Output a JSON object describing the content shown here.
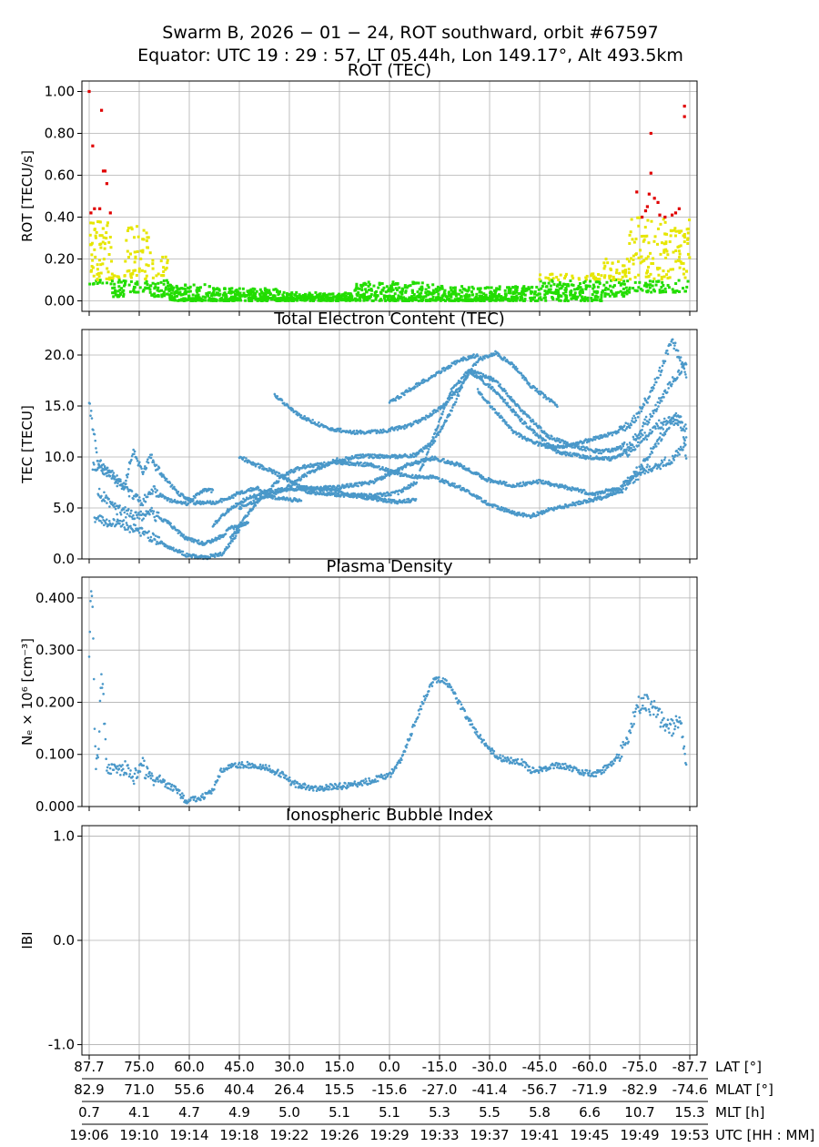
{
  "figure": {
    "title_line1": "Swarm B,  2026 − 01 − 24,  ROT southward,  orbit #67597",
    "title_line2": "Equator:  UTC 19 : 29 : 57,  LT 05.44h,  Lon 149.17°,  Alt 493.5km"
  },
  "colors": {
    "rot_low": "#22dd00",
    "rot_mid": "#e6e600",
    "rot_high": "#e00000",
    "series": "#4a98c9",
    "grid": "#b0b0b0"
  },
  "chart_data": [
    {
      "id": "rot",
      "type": "scatter",
      "title": "ROT (TEC)",
      "ylabel": "ROT [TECU/s]",
      "ylim": [
        -0.05,
        1.05
      ],
      "yticks": [
        0.0,
        0.2,
        0.4,
        0.6,
        0.8,
        1.0
      ],
      "ytick_labels": [
        "0.00",
        "0.20",
        "0.40",
        "0.60",
        "0.80",
        "1.00"
      ],
      "color_thresholds": {
        "green_below": 0.1,
        "yellow_below": 0.4
      },
      "points_red": [
        [
          0.0,
          1.0
        ],
        [
          0.2,
          0.74
        ],
        [
          0.1,
          0.42
        ],
        [
          0.3,
          0.44
        ],
        [
          0.7,
          0.91
        ],
        [
          0.8,
          0.62
        ],
        [
          0.9,
          0.62
        ],
        [
          1.0,
          0.56
        ],
        [
          1.2,
          0.42
        ],
        [
          0.6,
          0.44
        ],
        [
          31.0,
          0.52
        ],
        [
          31.3,
          0.4
        ],
        [
          31.6,
          0.45
        ],
        [
          31.8,
          0.8
        ],
        [
          31.8,
          0.61
        ],
        [
          31.7,
          0.51
        ],
        [
          32.0,
          0.49
        ],
        [
          32.2,
          0.47
        ],
        [
          32.3,
          0.41
        ],
        [
          31.5,
          0.43
        ],
        [
          32.6,
          0.4
        ],
        [
          33.0,
          0.41
        ],
        [
          33.2,
          0.42
        ],
        [
          33.4,
          0.44
        ],
        [
          33.7,
          0.93
        ],
        [
          33.7,
          0.88
        ]
      ],
      "envelope_segments": [
        {
          "x_start": 0.0,
          "x_end": 1.3,
          "y_min": 0.08,
          "y_max": 0.38
        },
        {
          "x_start": 1.3,
          "x_end": 2.0,
          "y_min": 0.02,
          "y_max": 0.13
        },
        {
          "x_start": 2.0,
          "x_end": 3.5,
          "y_min": 0.04,
          "y_max": 0.37
        },
        {
          "x_start": 3.5,
          "x_end": 4.5,
          "y_min": 0.02,
          "y_max": 0.21
        },
        {
          "x_start": 4.5,
          "x_end": 7.0,
          "y_min": 0.0,
          "y_max": 0.08
        },
        {
          "x_start": 7.0,
          "x_end": 11.0,
          "y_min": 0.0,
          "y_max": 0.06
        },
        {
          "x_start": 11.0,
          "x_end": 15.0,
          "y_min": 0.0,
          "y_max": 0.04
        },
        {
          "x_start": 15.0,
          "x_end": 19.5,
          "y_min": 0.0,
          "y_max": 0.09
        },
        {
          "x_start": 19.5,
          "x_end": 25.5,
          "y_min": 0.0,
          "y_max": 0.07
        },
        {
          "x_start": 25.5,
          "x_end": 29.0,
          "y_min": 0.0,
          "y_max": 0.13
        },
        {
          "x_start": 29.0,
          "x_end": 30.5,
          "y_min": 0.02,
          "y_max": 0.2
        },
        {
          "x_start": 30.5,
          "x_end": 34.0,
          "y_min": 0.04,
          "y_max": 0.4
        }
      ]
    },
    {
      "id": "tec",
      "type": "scatter",
      "title": "Total Electron Content (TEC)",
      "ylabel": "TEC [TECU]",
      "ylim": [
        0,
        22.5
      ],
      "yticks": [
        0,
        5,
        10,
        15,
        20
      ],
      "ytick_labels": [
        "0.0",
        "5.0",
        "10.0",
        "15.0",
        "20.0"
      ],
      "series": [
        {
          "name": "arc1",
          "x": [
            0,
            0.5,
            1.5,
            2.5,
            3.0,
            3.5,
            4.5,
            5.5,
            6.5,
            7.0
          ],
          "y": [
            15.5,
            9.5,
            8.0,
            6.2,
            5.6,
            6.8,
            5.8,
            5.4,
            6.8,
            6.7
          ]
        },
        {
          "name": "arc2",
          "x": [
            0.2,
            1.0,
            2.0,
            2.5,
            3.0,
            3.5,
            4.0,
            5.0,
            6.0,
            7.0,
            8.0,
            8.5,
            9.5,
            10.5,
            12.0
          ],
          "y": [
            9.0,
            8.5,
            7.0,
            10.8,
            8.5,
            10.0,
            8.5,
            6.5,
            5.5,
            5.5,
            6.0,
            6.5,
            7.0,
            6.0,
            5.7
          ]
        },
        {
          "name": "arc3",
          "x": [
            0.5,
            1.5,
            2.5,
            3.5,
            4.5,
            5.5,
            6.5,
            7.0,
            7.5,
            8.0,
            9.0
          ],
          "y": [
            6.5,
            5.0,
            4.2,
            4.5,
            3.5,
            2.0,
            1.5,
            1.8,
            2.2,
            3.0,
            3.5
          ]
        },
        {
          "name": "arc4",
          "x": [
            0.3,
            1.5,
            2.5,
            3.5,
            4.5,
            5.5,
            6.5,
            7.5,
            8.0,
            8.5
          ],
          "y": [
            4.0,
            3.5,
            3.0,
            2.2,
            1.2,
            0.4,
            0.1,
            0.5,
            1.5,
            2.8
          ]
        },
        {
          "name": "arc5",
          "x": [
            7.0,
            8.0,
            9.0,
            10.0,
            11.0,
            12.0,
            14.0,
            16.0,
            18.0,
            19.5,
            21.0,
            22.5,
            24.0,
            25.5,
            27.0,
            28.5,
            30.0,
            31.5,
            33.0,
            33.8
          ],
          "y": [
            3.3,
            5.0,
            6.0,
            6.5,
            6.8,
            6.9,
            7.0,
            7.5,
            9.2,
            9.9,
            9.2,
            7.8,
            7.2,
            7.6,
            7.0,
            6.4,
            6.9,
            8.8,
            9.7,
            11.5
          ]
        },
        {
          "name": "arc6",
          "x": [
            8.0,
            9.0,
            10.0,
            11.0,
            12.0,
            14.0,
            16.0,
            18.0,
            19.5,
            21.0,
            22.5,
            24.0,
            25.0,
            26.0,
            27.5,
            29.0,
            30.0,
            31.0,
            32.0,
            33.0,
            33.8
          ],
          "y": [
            2.0,
            4.5,
            6.5,
            8.2,
            9.0,
            9.5,
            9.2,
            8.1,
            8.0,
            7.0,
            5.5,
            4.5,
            4.2,
            4.8,
            5.4,
            6.0,
            6.6,
            8.5,
            11.0,
            13.5,
            12.8
          ]
        },
        {
          "name": "arc7",
          "x": [
            8.5,
            9.5,
            10.5,
            11.5,
            12.5,
            14.0,
            16.0,
            17.5,
            18.5,
            19.5,
            20.5,
            21.5,
            23.0,
            24.5,
            25.5,
            26.5,
            28.0,
            29.5,
            30.5,
            31.5,
            32.5,
            33.5,
            33.8
          ],
          "y": [
            10.0,
            9.2,
            8.5,
            7.5,
            6.5,
            6.3,
            6.2,
            6.5,
            7.5,
            12.0,
            16.5,
            18.5,
            16.5,
            13.5,
            12.0,
            10.5,
            10.0,
            9.8,
            10.5,
            12.0,
            13.5,
            14.0,
            10.0
          ]
        },
        {
          "name": "arc8",
          "x": [
            8.5,
            9.5,
            11.0,
            12.5,
            14.0,
            15.5,
            17.0,
            18.5,
            19.5,
            20.5,
            21.5,
            23.0,
            24.5,
            26.0,
            27.5,
            29.0,
            30.5,
            32.0,
            33.0,
            33.8
          ],
          "y": [
            5.0,
            5.8,
            6.8,
            8.5,
            9.7,
            10.1,
            10.0,
            10.2,
            11.5,
            14.5,
            18.5,
            17.5,
            14.5,
            12.0,
            11.0,
            10.5,
            11.0,
            14.5,
            17.5,
            19.0
          ]
        },
        {
          "name": "arc9",
          "x": [
            10.5,
            12.0,
            13.5,
            15.0,
            16.5,
            18.0,
            19.0,
            20.0,
            21.0,
            22.0,
            23.0,
            24.0,
            25.0,
            26.5
          ],
          "y": [
            16.0,
            14.0,
            12.8,
            12.4,
            12.5,
            13.0,
            13.8,
            15.0,
            16.8,
            19.5,
            20.2,
            19.0,
            17.0,
            15.0
          ]
        },
        {
          "name": "arc10",
          "x": [
            12.0,
            13.5,
            15.0,
            16.5,
            17.5,
            18.5
          ],
          "y": [
            7.0,
            6.8,
            6.2,
            5.8,
            5.6,
            5.8
          ]
        },
        {
          "name": "arc11",
          "x": [
            17.0,
            18.5,
            20.0,
            21.0,
            22.0
          ],
          "y": [
            15.3,
            17.0,
            18.5,
            19.5,
            20.0
          ]
        },
        {
          "name": "arc12",
          "x": [
            22.0,
            23.0,
            24.0,
            25.0,
            26.0,
            27.0,
            28.0,
            29.0,
            30.0,
            31.0,
            32.0,
            33.0,
            33.8
          ],
          "y": [
            16.5,
            14.5,
            12.5,
            11.5,
            11.0,
            11.0,
            11.5,
            12.0,
            12.5,
            14.0,
            17.0,
            21.5,
            18.0
          ]
        }
      ]
    },
    {
      "id": "density",
      "type": "scatter",
      "title": "Plasma Density",
      "ylabel": "Nₑ × 10⁶ [cm⁻³]",
      "ylim": [
        0,
        0.44
      ],
      "yticks": [
        0,
        0.1,
        0.2,
        0.3,
        0.4
      ],
      "ytick_labels": [
        "0.000",
        "0.100",
        "0.200",
        "0.300",
        "0.400"
      ],
      "series": [
        {
          "name": "Ne",
          "x": [
            0.0,
            0.1,
            0.2,
            0.3,
            0.4,
            0.5,
            0.7,
            1.0,
            1.5,
            2.0,
            2.5,
            3.0,
            3.5,
            4.0,
            4.5,
            5.0,
            5.5,
            6.0,
            6.5,
            7.0,
            7.5,
            8.0,
            8.5,
            9.0,
            10.0,
            11.0,
            11.5,
            12.0,
            12.5,
            13.0,
            14.0,
            15.0,
            16.0,
            17.0,
            17.5,
            18.0,
            18.5,
            19.0,
            19.5,
            20.0,
            20.5,
            21.0,
            21.5,
            22.0,
            22.5,
            23.0,
            23.5,
            24.0,
            24.5,
            25.0,
            25.5,
            26.0,
            26.5,
            27.0,
            27.5,
            28.0,
            28.5,
            29.0,
            29.5,
            30.0,
            30.5,
            31.0,
            31.5,
            32.0,
            32.5,
            33.0,
            33.5,
            33.8
          ],
          "y": [
            0.3,
            0.43,
            0.39,
            0.16,
            0.07,
            0.09,
            0.26,
            0.08,
            0.07,
            0.07,
            0.06,
            0.08,
            0.05,
            0.05,
            0.04,
            0.03,
            0.01,
            0.015,
            0.02,
            0.03,
            0.07,
            0.08,
            0.08,
            0.08,
            0.075,
            0.06,
            0.045,
            0.04,
            0.036,
            0.036,
            0.038,
            0.042,
            0.05,
            0.06,
            0.08,
            0.12,
            0.165,
            0.21,
            0.24,
            0.245,
            0.225,
            0.195,
            0.165,
            0.14,
            0.115,
            0.1,
            0.09,
            0.088,
            0.085,
            0.07,
            0.07,
            0.075,
            0.08,
            0.077,
            0.07,
            0.065,
            0.062,
            0.068,
            0.08,
            0.1,
            0.13,
            0.19,
            0.2,
            0.19,
            0.16,
            0.15,
            0.16,
            0.08
          ]
        }
      ]
    },
    {
      "id": "ibi",
      "type": "scatter",
      "title": "Ionospheric Bubble Index",
      "ylabel": "IBI",
      "ylim": [
        -1.1,
        1.1
      ],
      "yticks": [
        -1,
        0,
        1
      ],
      "ytick_labels": [
        "-1.0",
        "0.0",
        "1.0"
      ],
      "series": []
    }
  ],
  "x_axis": {
    "domain": [
      0,
      34
    ],
    "tick_positions": [
      0,
      2.833,
      5.667,
      8.5,
      11.333,
      14.167,
      17.0,
      19.833,
      22.667,
      25.5,
      28.333,
      31.167,
      34
    ],
    "rows": [
      {
        "label": "LAT [°]",
        "values": [
          "87.7",
          "75.0",
          "60.0",
          "45.0",
          "30.0",
          "15.0",
          "0.0",
          "-15.0",
          "-30.0",
          "-45.0",
          "-60.0",
          "-75.0",
          "-87.7"
        ]
      },
      {
        "label": "MLAT [°]",
        "values": [
          "82.9",
          "71.0",
          "55.6",
          "40.4",
          "26.4",
          "15.5",
          "-15.6",
          "-27.0",
          "-41.4",
          "-56.7",
          "-71.9",
          "-82.9",
          "-74.6"
        ]
      },
      {
        "label": "MLT [h]",
        "values": [
          "0.7",
          "4.1",
          "4.7",
          "4.9",
          "5.0",
          "5.1",
          "5.1",
          "5.3",
          "5.5",
          "5.8",
          "6.6",
          "10.7",
          "15.3"
        ]
      },
      {
        "label": "UTC [HH : MM]",
        "values": [
          "19:06",
          "19:10",
          "19:14",
          "19:18",
          "19:22",
          "19:26",
          "19:29",
          "19:33",
          "19:37",
          "19:41",
          "19:45",
          "19:49",
          "19:53"
        ]
      }
    ]
  }
}
